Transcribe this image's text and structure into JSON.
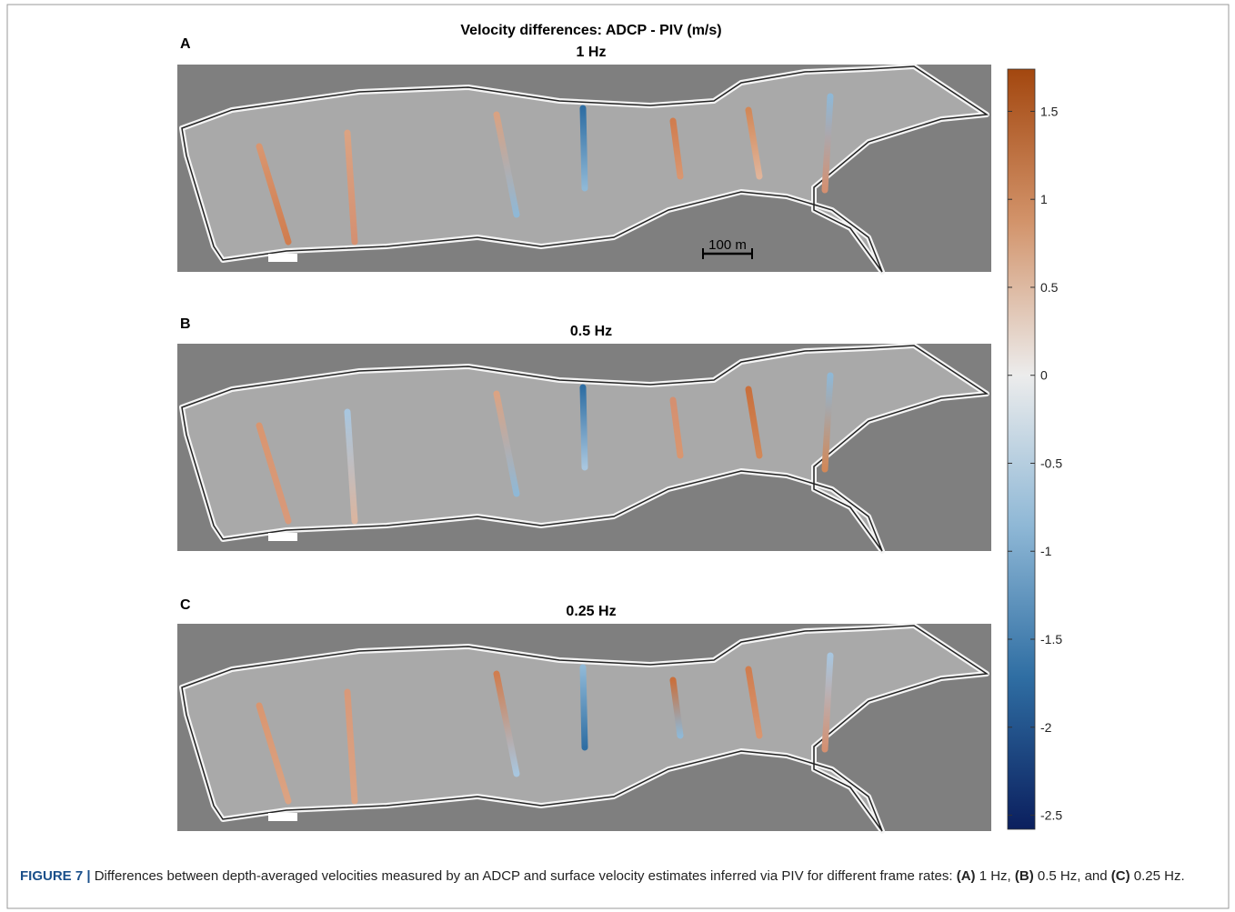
{
  "figure": {
    "title": "Velocity differences: ADCP - PIV (m/s)",
    "panels": [
      {
        "label": "A",
        "title": "1 Hz"
      },
      {
        "label": "B",
        "title": "0.5 Hz"
      },
      {
        "label": "C",
        "title": "0.25 Hz"
      }
    ],
    "scale_bar": "100 m",
    "colorbar": {
      "clim": [
        -2.58,
        1.74
      ],
      "ticks": [
        1.5,
        1,
        0.5,
        0,
        -0.5,
        -1,
        -1.5,
        -2,
        -2.5
      ]
    }
  },
  "caption": {
    "label": "FIGURE 7 |",
    "segments": [
      {
        "text": " Differences between depth-averaged velocities measured by an ADCP and surface velocity estimates inferred via PIV for different frame rates: ",
        "bold": false
      },
      {
        "text": "(A)",
        "bold": true
      },
      {
        "text": " 1 Hz, ",
        "bold": false
      },
      {
        "text": "(B)",
        "bold": true
      },
      {
        "text": " 0.5 Hz, and ",
        "bold": false
      },
      {
        "text": "(C)",
        "bold": true
      },
      {
        "text": " 0.25 Hz.",
        "bold": false
      }
    ]
  }
}
